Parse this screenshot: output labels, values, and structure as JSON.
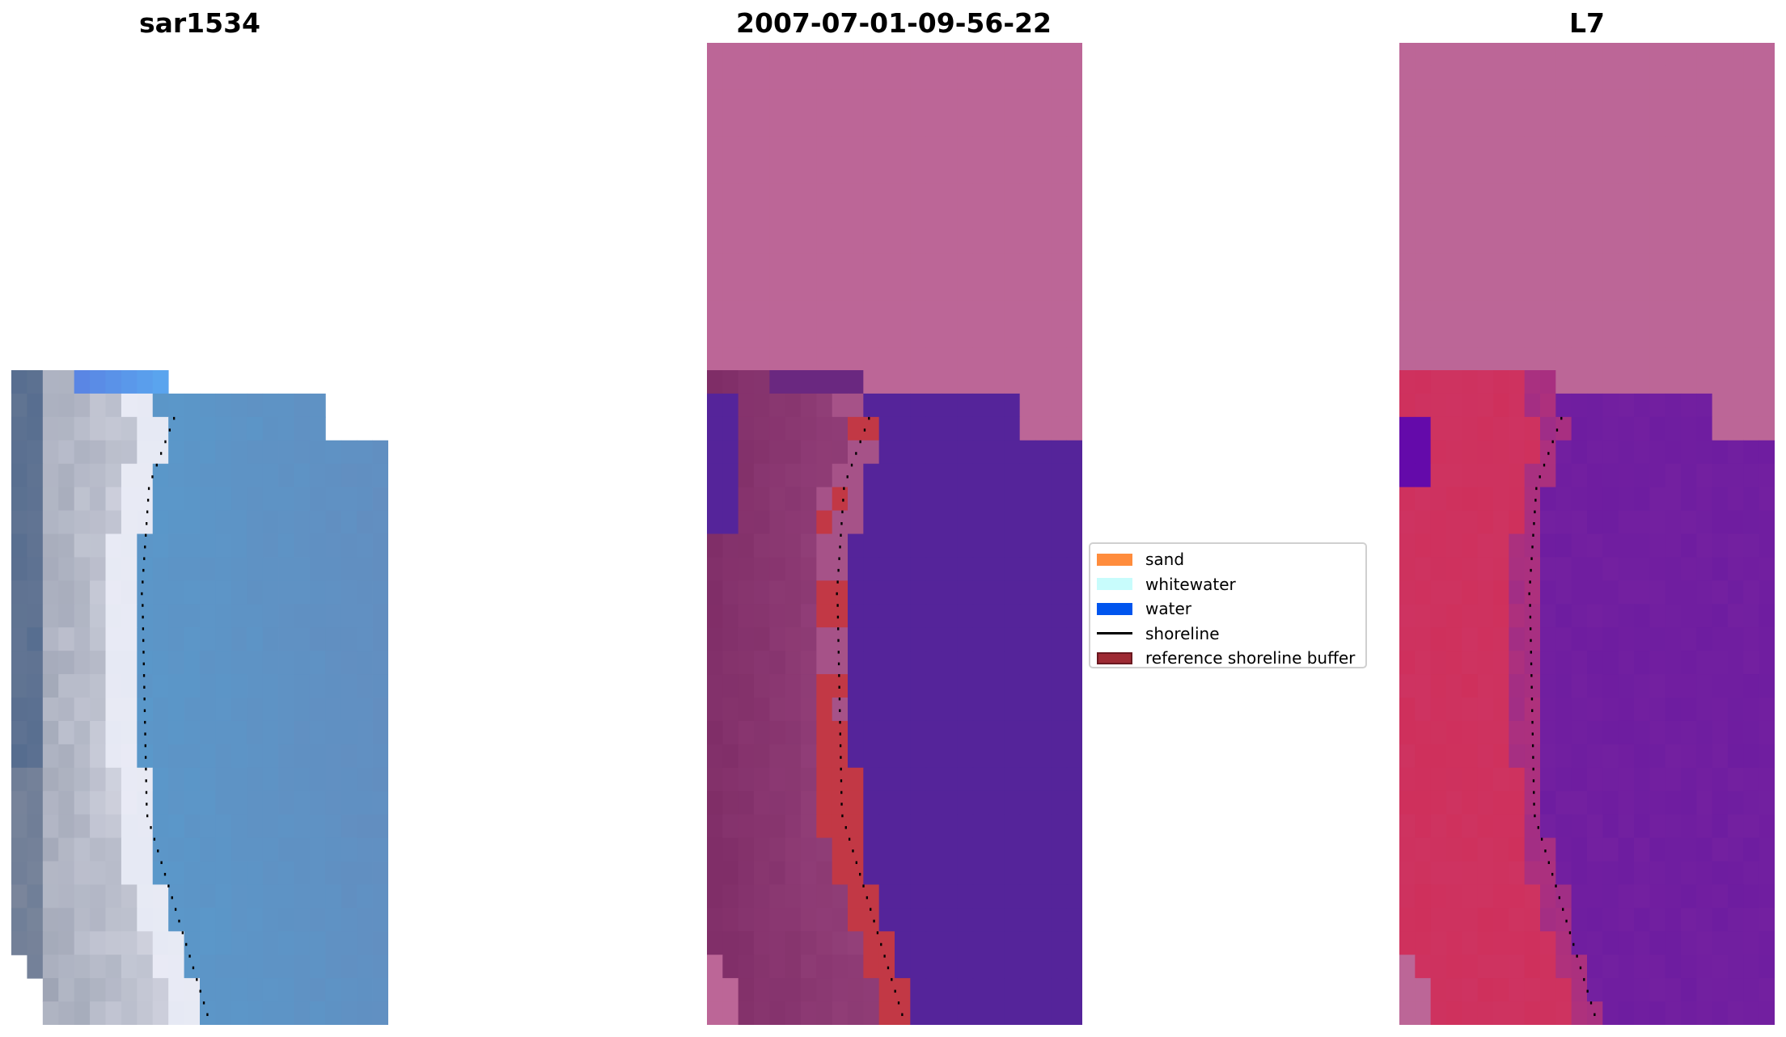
{
  "panels": [
    {
      "title": "sar1534"
    },
    {
      "title": "2007-07-01-09-56-22"
    },
    {
      "title": "L7"
    }
  ],
  "legend": {
    "items": [
      {
        "label": "sand",
        "kind": "patch",
        "color": "#ff8c3c"
      },
      {
        "label": "whitewater",
        "kind": "patch",
        "color": "#c8fcfc"
      },
      {
        "label": "water",
        "kind": "patch",
        "color": "#0055ee"
      },
      {
        "label": "shoreline",
        "kind": "line",
        "color": "#000000"
      },
      {
        "label": "reference shoreline buffer",
        "kind": "patch",
        "color": "#9e2a33",
        "edge": "#6a1820"
      }
    ]
  },
  "colors": {
    "nodata_pink": "#bc6697",
    "class_water": "#55249a",
    "class_buffer_red": "#c23845",
    "class_land_dark": "#7e2c66",
    "class_land_mid": "#98457e",
    "mndwi_water": "#7a24a0",
    "mndwi_land": "#cc3868",
    "shoreline": "#000000"
  }
}
